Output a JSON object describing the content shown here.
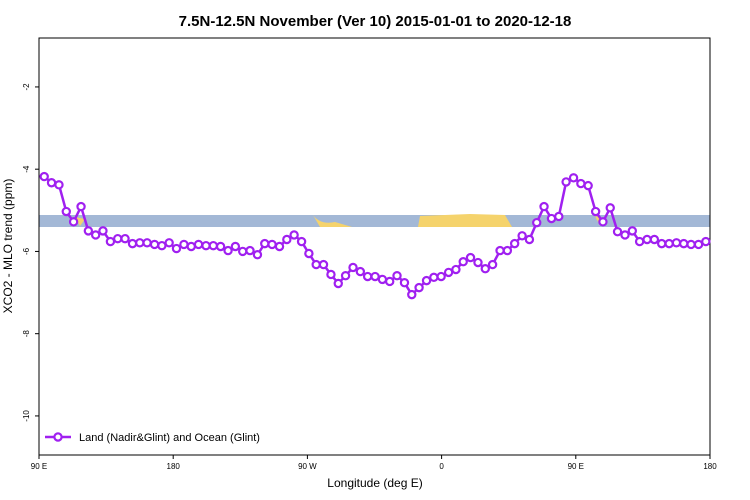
{
  "chart_data": {
    "type": "line",
    "title": "7.5N-12.5N November (Ver 10)   2015-01-01 to 2020-12-18",
    "x_label": "Longitude (deg E)",
    "y_label": "XCO2 - MLO trend (ppm)",
    "xlim": [
      90,
      540
    ],
    "xticks": [
      {
        "value": 90,
        "label": "90 E"
      },
      {
        "value": 180,
        "label": "180"
      },
      {
        "value": 270,
        "label": "90 W"
      },
      {
        "value": 360,
        "label": "0"
      },
      {
        "value": 450,
        "label": "90 E"
      },
      {
        "value": 540,
        "label": "180"
      }
    ],
    "ylim": [
      -10.95,
      -0.81
    ],
    "yticks": [
      -2,
      -4,
      -6,
      -8,
      -10
    ],
    "legend": "bottom-left",
    "x": [
      93.5,
      98.4,
      103.4,
      108.3,
      113.2,
      118.2,
      123.1,
      128.0,
      132.9,
      137.9,
      142.8,
      147.7,
      152.7,
      157.6,
      162.5,
      167.5,
      172.4,
      177.3,
      182.2,
      187.2,
      192.1,
      197.0,
      202.0,
      206.9,
      211.8,
      216.8,
      221.7,
      226.6,
      231.5,
      236.5,
      241.4,
      246.3,
      251.3,
      256.2,
      261.1,
      266.1,
      271.0,
      275.9,
      280.8,
      285.8,
      290.7,
      295.6,
      300.6,
      305.5,
      310.4,
      315.4,
      320.3,
      325.2,
      330.1,
      335.1,
      340.0,
      344.9,
      349.9,
      354.8,
      359.7,
      364.7,
      369.6,
      374.5,
      379.4,
      384.4,
      389.3,
      394.2,
      399.2,
      404.1,
      409.0,
      414.0,
      418.9,
      423.8,
      428.7,
      433.7,
      438.6,
      443.5,
      448.5,
      453.4,
      458.3,
      463.3,
      468.2,
      473.1,
      478.0,
      483.0,
      487.9,
      492.8,
      497.8,
      502.7,
      507.6,
      512.6,
      517.5,
      522.4,
      527.3,
      532.3,
      537.2
    ],
    "series": [
      {
        "name": "Land (Nadir&Glint) and Ocean (Glint)",
        "color": "#a020f0",
        "values": [
          -4.18,
          -4.33,
          -4.38,
          -5.03,
          -5.28,
          -4.91,
          -5.5,
          -5.6,
          -5.5,
          -5.76,
          -5.69,
          -5.69,
          -5.81,
          -5.79,
          -5.79,
          -5.83,
          -5.86,
          -5.79,
          -5.93,
          -5.83,
          -5.88,
          -5.83,
          -5.86,
          -5.86,
          -5.88,
          -5.98,
          -5.88,
          -6.0,
          -5.98,
          -6.08,
          -5.81,
          -5.83,
          -5.88,
          -5.71,
          -5.6,
          -5.76,
          -6.05,
          -6.32,
          -6.32,
          -6.56,
          -6.78,
          -6.59,
          -6.39,
          -6.49,
          -6.61,
          -6.61,
          -6.68,
          -6.73,
          -6.59,
          -6.76,
          -7.05,
          -6.88,
          -6.71,
          -6.63,
          -6.61,
          -6.51,
          -6.44,
          -6.25,
          -6.15,
          -6.27,
          -6.42,
          -6.32,
          -5.98,
          -5.98,
          -5.81,
          -5.62,
          -5.71,
          -5.3,
          -4.91,
          -5.2,
          -5.15,
          -4.31,
          -4.21,
          -4.35,
          -4.4,
          -5.03,
          -5.28,
          -4.94,
          -5.52,
          -5.6,
          -5.5,
          -5.76,
          -5.71,
          -5.71,
          -5.81,
          -5.81,
          -5.79,
          -5.81,
          -5.83,
          -5.83,
          -5.76
        ]
      }
    ]
  }
}
